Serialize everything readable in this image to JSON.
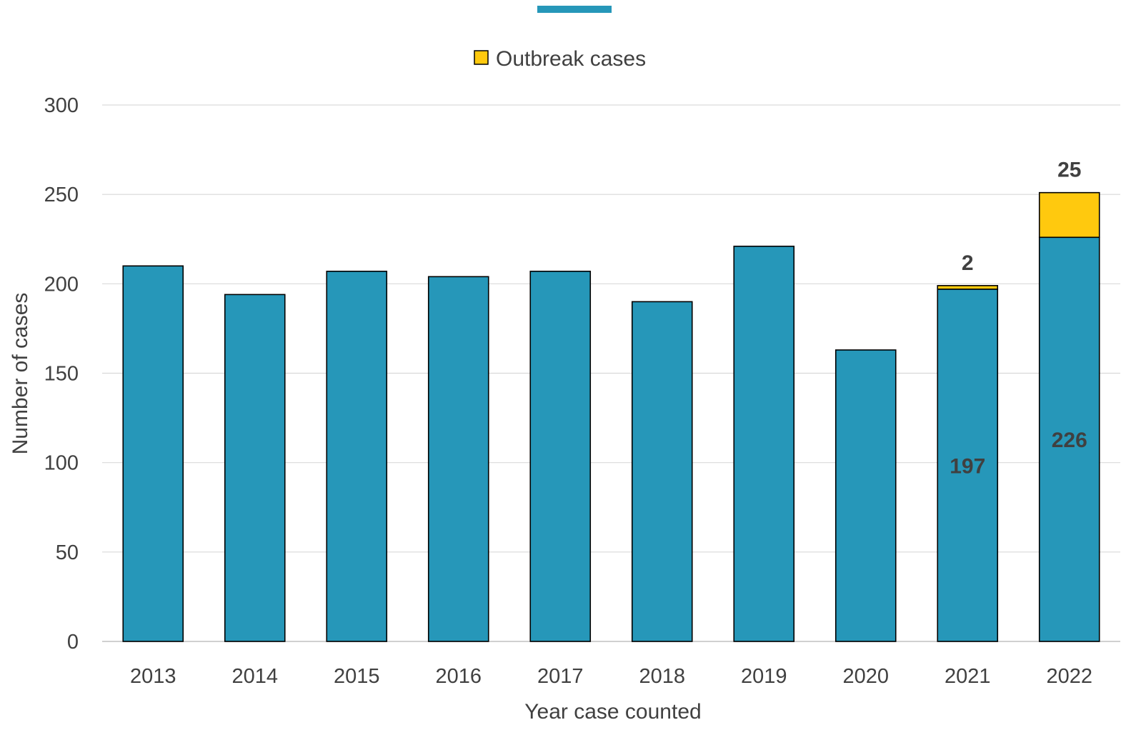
{
  "chart_data": {
    "type": "bar",
    "stacked": true,
    "xlabel": "Year case counted",
    "ylabel": "Number of cases",
    "ylim": [
      0,
      300
    ],
    "yticks": [
      0,
      50,
      100,
      150,
      200,
      250,
      300
    ],
    "categories": [
      "2013",
      "2014",
      "2015",
      "2016",
      "2017",
      "2018",
      "2019",
      "2020",
      "2021",
      "2022"
    ],
    "series": [
      {
        "values": [
          210,
          194,
          207,
          204,
          207,
          190,
          221,
          163,
          197,
          226
        ],
        "color": "#2697B9",
        "data_labels": [
          null,
          null,
          null,
          null,
          null,
          null,
          null,
          null,
          "197",
          "226"
        ]
      },
      {
        "name": "Outbreak cases",
        "values": [
          0,
          0,
          0,
          0,
          0,
          0,
          0,
          0,
          2,
          25
        ],
        "color": "#FFC90E",
        "data_labels": [
          null,
          null,
          null,
          null,
          null,
          null,
          null,
          null,
          "2",
          "25"
        ]
      }
    ],
    "grid": true,
    "legend_position": "top-center",
    "legend": [
      {
        "label": "",
        "color": "#2697B9",
        "marker": "line"
      },
      {
        "label": "Outbreak cases",
        "color": "#FFC90E",
        "marker": "square"
      }
    ]
  }
}
